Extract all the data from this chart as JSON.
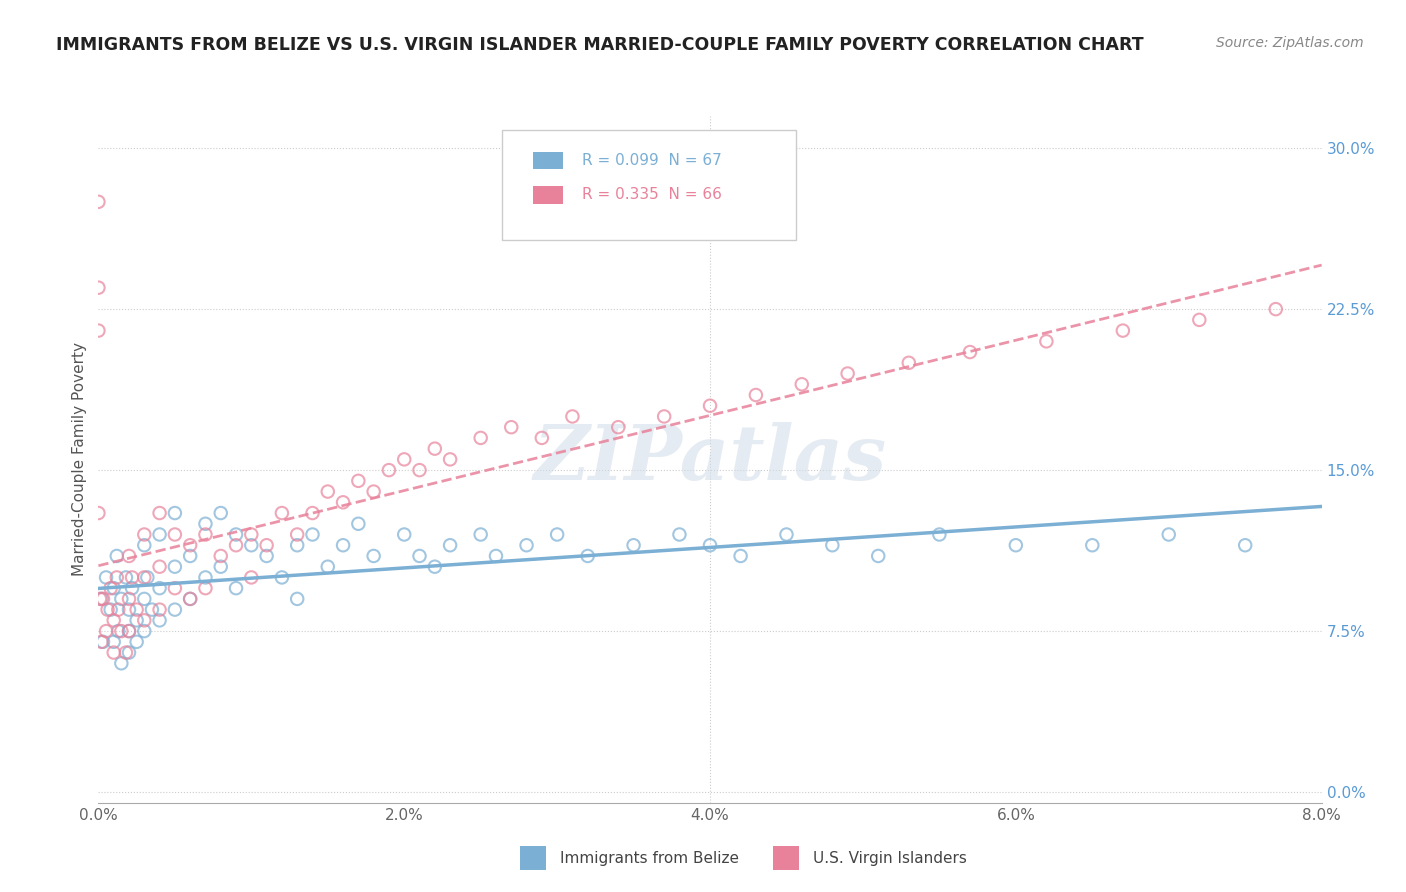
{
  "title": "IMMIGRANTS FROM BELIZE VS U.S. VIRGIN ISLANDER MARRIED-COUPLE FAMILY POVERTY CORRELATION CHART",
  "source": "Source: ZipAtlas.com",
  "ylabel": "Married-Couple Family Poverty",
  "series1_label": "Immigrants from Belize",
  "series2_label": "U.S. Virgin Islanders",
  "series1_color": "#7BAFD4",
  "series2_color": "#E8829A",
  "R1": 0.099,
  "N1": 67,
  "R2": 0.335,
  "N2": 66,
  "xlim": [
    0.0,
    0.08
  ],
  "ylim": [
    -0.005,
    0.315
  ],
  "xticks": [
    0.0,
    0.02,
    0.04,
    0.06,
    0.08
  ],
  "yticks": [
    0.0,
    0.075,
    0.15,
    0.225,
    0.3
  ],
  "xticklabels": [
    "0.0%",
    "2.0%",
    "4.0%",
    "6.0%",
    "8.0%"
  ],
  "yticklabels": [
    "0.0%",
    "7.5%",
    "15.0%",
    "22.5%",
    "30.0%"
  ],
  "watermark": "ZIPatlas",
  "background_color": "#ffffff",
  "series1_x": [
    0.0002,
    0.0003,
    0.0005,
    0.0008,
    0.001,
    0.001,
    0.0012,
    0.0013,
    0.0015,
    0.0015,
    0.0018,
    0.002,
    0.002,
    0.002,
    0.0022,
    0.0025,
    0.0025,
    0.003,
    0.003,
    0.003,
    0.0032,
    0.0035,
    0.004,
    0.004,
    0.004,
    0.005,
    0.005,
    0.005,
    0.006,
    0.006,
    0.007,
    0.007,
    0.008,
    0.008,
    0.009,
    0.009,
    0.01,
    0.011,
    0.012,
    0.013,
    0.013,
    0.014,
    0.015,
    0.016,
    0.017,
    0.018,
    0.02,
    0.021,
    0.022,
    0.023,
    0.025,
    0.026,
    0.028,
    0.03,
    0.032,
    0.035,
    0.038,
    0.04,
    0.042,
    0.045,
    0.048,
    0.051,
    0.055,
    0.06,
    0.065,
    0.07,
    0.075
  ],
  "series1_y": [
    0.09,
    0.07,
    0.1,
    0.085,
    0.07,
    0.095,
    0.11,
    0.075,
    0.09,
    0.06,
    0.1,
    0.085,
    0.075,
    0.065,
    0.095,
    0.08,
    0.07,
    0.115,
    0.09,
    0.075,
    0.1,
    0.085,
    0.12,
    0.095,
    0.08,
    0.13,
    0.105,
    0.085,
    0.11,
    0.09,
    0.125,
    0.1,
    0.13,
    0.105,
    0.12,
    0.095,
    0.115,
    0.11,
    0.1,
    0.115,
    0.09,
    0.12,
    0.105,
    0.115,
    0.125,
    0.11,
    0.12,
    0.11,
    0.105,
    0.115,
    0.12,
    0.11,
    0.115,
    0.12,
    0.11,
    0.115,
    0.12,
    0.115,
    0.11,
    0.12,
    0.115,
    0.11,
    0.12,
    0.115,
    0.115,
    0.12,
    0.115
  ],
  "series2_x": [
    0.0001,
    0.0002,
    0.0003,
    0.0005,
    0.0006,
    0.0008,
    0.001,
    0.001,
    0.0012,
    0.0013,
    0.0015,
    0.0018,
    0.002,
    0.002,
    0.002,
    0.0022,
    0.0025,
    0.003,
    0.003,
    0.003,
    0.004,
    0.004,
    0.004,
    0.005,
    0.005,
    0.006,
    0.006,
    0.007,
    0.007,
    0.008,
    0.009,
    0.01,
    0.01,
    0.011,
    0.012,
    0.013,
    0.014,
    0.015,
    0.016,
    0.017,
    0.018,
    0.019,
    0.02,
    0.021,
    0.022,
    0.023,
    0.025,
    0.027,
    0.029,
    0.031,
    0.034,
    0.037,
    0.04,
    0.043,
    0.046,
    0.049,
    0.053,
    0.057,
    0.062,
    0.067,
    0.072,
    0.077,
    0.0,
    0.0,
    0.0,
    0.0
  ],
  "series2_y": [
    0.09,
    0.07,
    0.09,
    0.075,
    0.085,
    0.095,
    0.08,
    0.065,
    0.1,
    0.085,
    0.075,
    0.065,
    0.11,
    0.09,
    0.075,
    0.1,
    0.085,
    0.12,
    0.1,
    0.08,
    0.13,
    0.105,
    0.085,
    0.12,
    0.095,
    0.115,
    0.09,
    0.12,
    0.095,
    0.11,
    0.115,
    0.12,
    0.1,
    0.115,
    0.13,
    0.12,
    0.13,
    0.14,
    0.135,
    0.145,
    0.14,
    0.15,
    0.155,
    0.15,
    0.16,
    0.155,
    0.165,
    0.17,
    0.165,
    0.175,
    0.17,
    0.175,
    0.18,
    0.185,
    0.19,
    0.195,
    0.2,
    0.205,
    0.21,
    0.215,
    0.22,
    0.225,
    0.275,
    0.235,
    0.215,
    0.13
  ]
}
